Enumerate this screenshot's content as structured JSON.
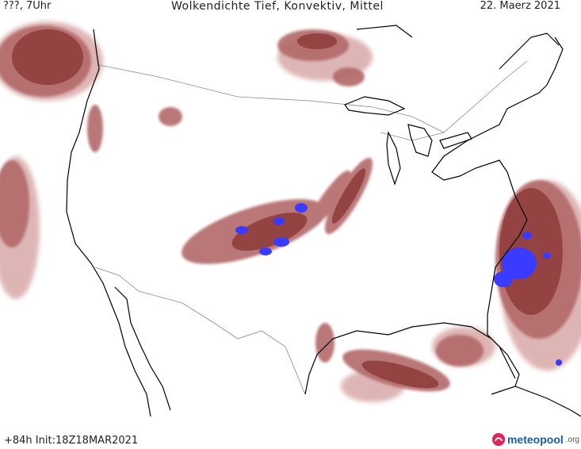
{
  "header": {
    "left": "???, 7Uhr",
    "title": "Wolkendichte   Tief, Konvektiv, Mittel",
    "date": "22. Maerz 2021"
  },
  "footer": {
    "run_info": "+84h  Init:18Z18MAR2021"
  },
  "brand": {
    "name": "meteopool",
    "suffix": ".org"
  },
  "colors": {
    "cloud_dense": "#8e3a3a",
    "cloud_medium": "#b26868",
    "cloud_light": "#d9a9a9",
    "convective": "#3b3bff",
    "coastline": "#000000",
    "borders": "#888888"
  }
}
